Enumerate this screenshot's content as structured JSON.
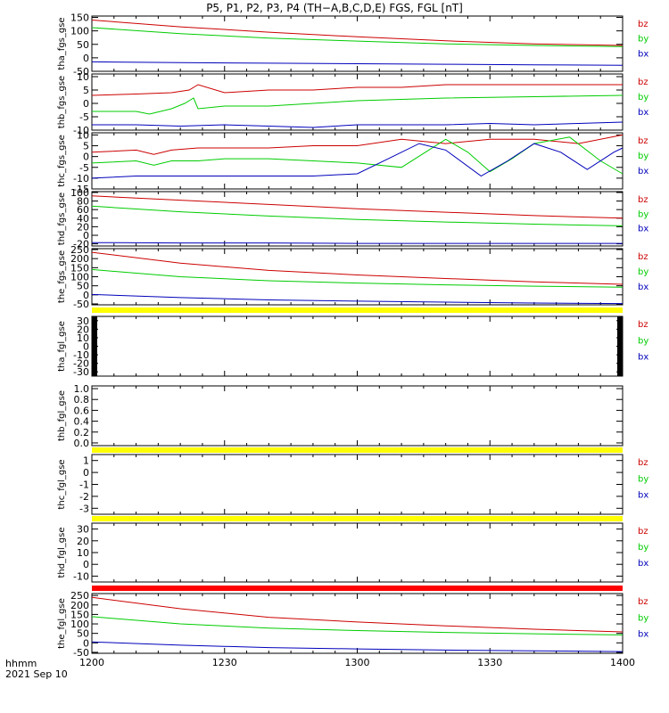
{
  "title": "P5, P1, P2, P3, P4 (TH−A,B,C,D,E) FGS, FGL [nT]",
  "footer": {
    "time_label": "hhmm",
    "date_label": "2021 Sep 10"
  },
  "colors": {
    "bz": "#cc0000",
    "by": "#00cc00",
    "bx": "#0000bb",
    "bar_yellow": "#ffff00",
    "bar_red": "#ff0000",
    "axis": "#000000"
  },
  "chart_data": {
    "type": "line",
    "x_ticks": [
      "1200",
      "1230",
      "1300",
      "1330",
      "1400"
    ],
    "x_range": [
      0,
      120
    ],
    "x_unit": "minutes after 12:00",
    "panels": [
      {
        "ylabel": "tha_fgs_gse",
        "y_ticks": [
          "150",
          "100",
          "50",
          "0",
          "-50"
        ],
        "ylim": [
          -50,
          155
        ],
        "legend": [
          "bz",
          "by",
          "bx"
        ],
        "series": [
          {
            "name": "bz",
            "color": "#cc0000",
            "x": [
              0,
              20,
              40,
              60,
              80,
              100,
              120
            ],
            "y": [
              140,
              115,
              95,
              78,
              63,
              52,
              46
            ]
          },
          {
            "name": "by",
            "color": "#00cc00",
            "x": [
              0,
              20,
              40,
              60,
              80,
              100,
              120
            ],
            "y": [
              112,
              90,
              73,
              62,
              52,
              46,
              42
            ]
          },
          {
            "name": "bx",
            "color": "#0000bb",
            "x": [
              0,
              20,
              40,
              60,
              80,
              100,
              120
            ],
            "y": [
              -15,
              -18,
              -20,
              -22,
              -24,
              -26,
              -28
            ]
          }
        ]
      },
      {
        "ylabel": "thb_fgs_gse",
        "y_ticks": [
          "10",
          "5",
          "0",
          "-5",
          "-10"
        ],
        "ylim": [
          -10,
          11
        ],
        "legend": [
          "bz",
          "by",
          "bx"
        ],
        "series": [
          {
            "name": "bz",
            "color": "#cc0000",
            "x": [
              0,
              10,
              18,
              22,
              24,
              30,
              40,
              50,
              60,
              70,
              80,
              100,
              120
            ],
            "y": [
              3,
              3.5,
              4,
              5,
              7,
              4,
              5,
              5,
              6,
              6,
              7,
              7,
              7
            ]
          },
          {
            "name": "by",
            "color": "#00cc00",
            "x": [
              0,
              10,
              13,
              18,
              21,
              23,
              24,
              30,
              40,
              50,
              60,
              80,
              100,
              120
            ],
            "y": [
              -3,
              -3,
              -4,
              -2,
              0,
              2,
              -2,
              -1,
              -1,
              0,
              1,
              2,
              2.5,
              3
            ]
          },
          {
            "name": "bx",
            "color": "#0000bb",
            "x": [
              0,
              10,
              20,
              30,
              40,
              50,
              60,
              70,
              80,
              90,
              100,
              110,
              120
            ],
            "y": [
              -8,
              -8,
              -8.5,
              -8,
              -8.5,
              -9,
              -8,
              -8,
              -8,
              -7.5,
              -8,
              -7.5,
              -7
            ]
          }
        ]
      },
      {
        "ylabel": "thc_fgs_gse",
        "y_ticks": [
          "10",
          "5",
          "0",
          "-5",
          "-10",
          "-15"
        ],
        "ylim": [
          -15,
          11
        ],
        "legend": [
          "bz",
          "by",
          "bx"
        ],
        "series": [
          {
            "name": "bz",
            "color": "#cc0000",
            "x": [
              0,
              10,
              14,
              18,
              24,
              30,
              40,
              50,
              60,
              70,
              80,
              90,
              100,
              110,
              120
            ],
            "y": [
              2,
              3,
              1,
              3,
              4,
              4,
              4,
              5,
              5,
              8,
              6,
              8,
              8,
              6,
              10
            ]
          },
          {
            "name": "by",
            "color": "#00cc00",
            "x": [
              0,
              10,
              14,
              18,
              24,
              30,
              40,
              50,
              60,
              70,
              80,
              85,
              90,
              95,
              100,
              108,
              115,
              120
            ],
            "y": [
              -3,
              -2,
              -4,
              -2,
              -2,
              -1,
              -1,
              -2,
              -3,
              -5,
              8,
              2,
              -7,
              -1,
              6,
              9,
              -2,
              -8
            ]
          },
          {
            "name": "bx",
            "color": "#0000bb",
            "x": [
              0,
              10,
              20,
              30,
              40,
              50,
              60,
              68,
              74,
              80,
              88,
              94,
              100,
              106,
              112,
              118,
              120
            ],
            "y": [
              -10,
              -9,
              -9,
              -9,
              -9,
              -9,
              -8,
              0,
              6,
              3,
              -9,
              -2,
              6,
              2,
              -6,
              2,
              4
            ]
          }
        ]
      },
      {
        "ylabel": "thd_fgs_gse",
        "y_ticks": [
          "100",
          "80",
          "60",
          "40",
          "20",
          "0",
          "-20"
        ],
        "ylim": [
          -25,
          102
        ],
        "legend": [
          "bz",
          "by",
          "bx"
        ],
        "series": [
          {
            "name": "bz",
            "color": "#cc0000",
            "x": [
              0,
              20,
              40,
              60,
              80,
              100,
              120
            ],
            "y": [
              92,
              82,
              72,
              62,
              54,
              46,
              40
            ]
          },
          {
            "name": "by",
            "color": "#00cc00",
            "x": [
              0,
              20,
              40,
              60,
              80,
              100,
              120
            ],
            "y": [
              68,
              55,
              45,
              37,
              31,
              26,
              22
            ]
          },
          {
            "name": "bx",
            "color": "#0000bb",
            "x": [
              0,
              20,
              40,
              60,
              80,
              100,
              120
            ],
            "y": [
              -17,
              -18,
              -18,
              -19,
              -19,
              -19,
              -19
            ]
          }
        ]
      },
      {
        "ylabel": "the_fgs_gse",
        "y_ticks": [
          "250",
          "200",
          "150",
          "100",
          "50",
          "0",
          "-50"
        ],
        "ylim": [
          -55,
          255
        ],
        "legend": [
          "bz",
          "by",
          "bx"
        ],
        "series": [
          {
            "name": "bz",
            "color": "#cc0000",
            "x": [
              0,
              20,
              40,
              60,
              80,
              100,
              120
            ],
            "y": [
              235,
              175,
              135,
              110,
              90,
              72,
              58
            ]
          },
          {
            "name": "by",
            "color": "#00cc00",
            "x": [
              0,
              20,
              40,
              60,
              80,
              100,
              120
            ],
            "y": [
              140,
              100,
              78,
              65,
              55,
              48,
              42
            ]
          },
          {
            "name": "bx",
            "color": "#0000bb",
            "x": [
              0,
              20,
              40,
              60,
              80,
              100,
              120
            ],
            "y": [
              2,
              -15,
              -28,
              -35,
              -40,
              -45,
              -48
            ]
          }
        ]
      },
      {
        "ylabel": "tha_fgl_gse",
        "y_ticks": [
          "30",
          "20",
          "10",
          "0",
          "-10",
          "-20",
          "-30"
        ],
        "ylim": [
          -35,
          35
        ],
        "legend": [
          "bz",
          "by",
          "bx"
        ],
        "series": []
      },
      {
        "ylabel": "thb_fgl_gse",
        "y_ticks": [
          "1.0",
          "0.8",
          "0.6",
          "0.4",
          "0.2",
          "0.0"
        ],
        "ylim": [
          -0.05,
          1.05
        ],
        "legend": [],
        "series": []
      },
      {
        "ylabel": "thc_fgl_gse",
        "y_ticks": [
          "1",
          "0",
          "-1",
          "-2",
          "-3"
        ],
        "ylim": [
          -3.5,
          1.5
        ],
        "legend": [
          "bz",
          "by",
          "bx"
        ],
        "series": []
      },
      {
        "ylabel": "thd_fgl_gse",
        "y_ticks": [
          "30",
          "20",
          "10",
          "0",
          "-10"
        ],
        "ylim": [
          -15,
          35
        ],
        "legend": [
          "bz",
          "by",
          "bx"
        ],
        "series": []
      },
      {
        "ylabel": "the_fgl_gse",
        "y_ticks": [
          "250",
          "200",
          "150",
          "100",
          "50",
          "0",
          "-50"
        ],
        "ylim": [
          -55,
          260
        ],
        "legend": [
          "bz",
          "by",
          "bx"
        ],
        "series": [
          {
            "name": "bz",
            "color": "#cc0000",
            "x": [
              0,
              20,
              40,
              60,
              80,
              100,
              120
            ],
            "y": [
              240,
              180,
              135,
              110,
              90,
              72,
              58
            ]
          },
          {
            "name": "by",
            "color": "#00cc00",
            "x": [
              0,
              20,
              40,
              60,
              80,
              100,
              120
            ],
            "y": [
              138,
              100,
              78,
              65,
              55,
              48,
              42
            ]
          },
          {
            "name": "bx",
            "color": "#0000bb",
            "x": [
              0,
              20,
              40,
              60,
              80,
              100,
              120
            ],
            "y": [
              5,
              -12,
              -25,
              -32,
              -38,
              -42,
              -46
            ]
          }
        ]
      }
    ]
  }
}
